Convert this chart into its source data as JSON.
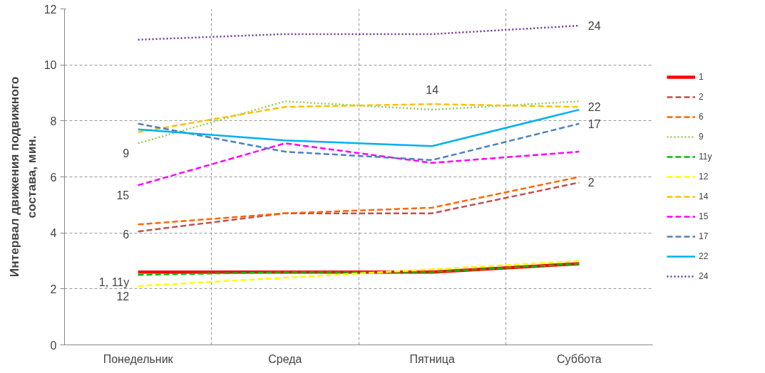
{
  "chart_data": {
    "type": "line",
    "ylabel": "Интервал движения подвижного\nсостава, мин.",
    "categories": [
      "Понедельник",
      "Среда",
      "Пятница",
      "Суббота"
    ],
    "ylim": [
      0,
      12
    ],
    "yticks": [
      0,
      2,
      4,
      6,
      8,
      10,
      12
    ],
    "grid": true,
    "legend": "right",
    "series": [
      {
        "name": "1",
        "color": "#ff0000",
        "line_style": "solid",
        "values": [
          2.6,
          2.6,
          2.6,
          2.9
        ]
      },
      {
        "name": "2",
        "color": "#c0504d",
        "line_style": "dashed",
        "values": [
          4.05,
          4.7,
          4.7,
          5.8
        ]
      },
      {
        "name": "6",
        "color": "#ff6600",
        "line_style": "dashed",
        "values": [
          4.3,
          4.7,
          4.9,
          6.0
        ]
      },
      {
        "name": "9",
        "color": "#92d050",
        "line_style": "dotted",
        "values": [
          7.2,
          8.7,
          8.4,
          8.7
        ]
      },
      {
        "name": "11y",
        "color": "#00c000",
        "line_style": "dashed",
        "values": [
          2.5,
          2.6,
          2.6,
          2.9
        ]
      },
      {
        "name": "12",
        "color": "#ffff00",
        "line_style": "dashed",
        "values": [
          2.1,
          2.4,
          2.7,
          3.0
        ]
      },
      {
        "name": "14",
        "color": "#ffc000",
        "line_style": "dashed",
        "values": [
          7.6,
          8.5,
          8.6,
          8.5
        ]
      },
      {
        "name": "15",
        "color": "#ff00ff",
        "line_style": "dashed",
        "values": [
          5.7,
          7.2,
          6.5,
          6.9
        ]
      },
      {
        "name": "17",
        "color": "#4f81bd",
        "line_style": "dashed",
        "values": [
          7.9,
          6.9,
          6.6,
          7.9
        ]
      },
      {
        "name": "22",
        "color": "#00b0f0",
        "line_style": "solid",
        "values": [
          7.7,
          7.3,
          7.1,
          8.4
        ]
      },
      {
        "name": "24",
        "color": "#7030a0",
        "line_style": "dotted",
        "values": [
          10.9,
          11.1,
          11.1,
          11.4
        ]
      }
    ],
    "annotations": [
      {
        "text": "24",
        "x": "Суббота",
        "y": 11.4
      },
      {
        "text": "14",
        "x": "Пятница",
        "y": 8.6
      },
      {
        "text": "22",
        "x": "Суббота",
        "y": 8.5
      },
      {
        "text": "17",
        "x": "Суббота",
        "y": 7.9
      },
      {
        "text": "2",
        "x": "Суббота",
        "y": 5.8
      },
      {
        "text": "9",
        "x": "Понедельник",
        "y": 7.2
      },
      {
        "text": "15",
        "x": "Понедельник",
        "y": 5.7
      },
      {
        "text": "6",
        "x": "Понедельник",
        "y": 4.3
      },
      {
        "text": "1, 11y",
        "x": "Понедельник",
        "y": 2.6
      },
      {
        "text": "12",
        "x": "Понедельник",
        "y": 2.1
      }
    ]
  }
}
